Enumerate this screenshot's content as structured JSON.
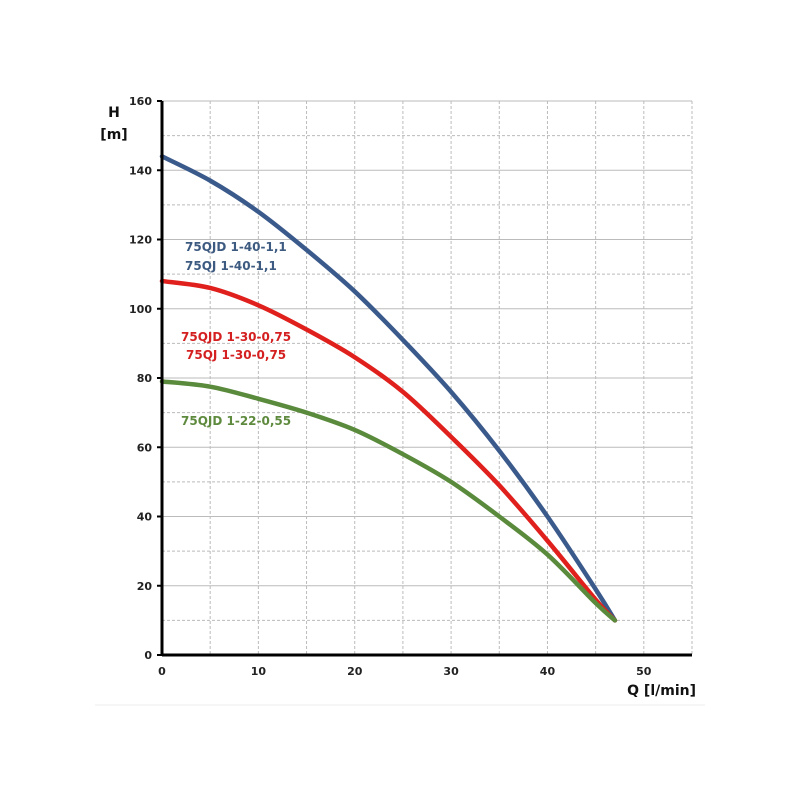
{
  "chart_data": {
    "type": "line",
    "title": "",
    "xlabel": "Q [l/min]",
    "ylabel_line1": "H",
    "ylabel_line2": "[m]",
    "xlim": [
      0,
      55
    ],
    "ylim": [
      0,
      160
    ],
    "xticks": [
      0,
      10,
      20,
      30,
      40,
      50
    ],
    "yticks": [
      0,
      20,
      40,
      60,
      80,
      100,
      120,
      140,
      160
    ],
    "grid": true,
    "series": [
      {
        "name": "75QJD 1-40-1,1",
        "name2": "75QJ 1-40-1,1",
        "color": "#3b5a8c",
        "label_color": "#3d5a80",
        "x": [
          0,
          5,
          10,
          15,
          20,
          25,
          30,
          35,
          40,
          45,
          47
        ],
        "y": [
          144,
          137,
          128,
          117,
          105,
          91,
          76,
          59,
          40,
          19,
          10
        ]
      },
      {
        "name": "75QJD 1-30-0,75",
        "name2": "75QJ 1-30-0,75",
        "color": "#e0201c",
        "label_color": "#d42020",
        "x": [
          0,
          5,
          10,
          15,
          20,
          25,
          30,
          35,
          40,
          45,
          47
        ],
        "y": [
          108,
          106,
          101,
          94,
          86,
          76,
          63,
          49,
          33,
          16,
          10
        ]
      },
      {
        "name": "75QJD 1-22-0,55",
        "name2": "",
        "color": "#5a8a3c",
        "label_color": "#5e8a3e",
        "x": [
          0,
          5,
          10,
          15,
          20,
          25,
          30,
          35,
          40,
          45,
          47
        ],
        "y": [
          79,
          77.5,
          74,
          70,
          65,
          58,
          50,
          40,
          29,
          15,
          10
        ]
      }
    ]
  }
}
